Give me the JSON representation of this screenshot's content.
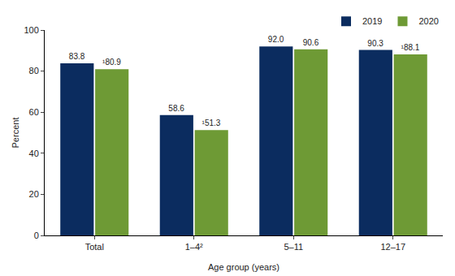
{
  "chart_data": {
    "type": "bar",
    "x_label": "Age group (years)",
    "y_label": "Percent",
    "categories": [
      "Total",
      "1–4²",
      "5–11",
      "12–17"
    ],
    "series": [
      {
        "name": "2019",
        "color": "#0b2c5f",
        "values": [
          83.8,
          58.6,
          92.0,
          90.3
        ],
        "value_labels": [
          "83.8",
          "58.6",
          "92.0",
          "90.3"
        ]
      },
      {
        "name": "2020",
        "color": "#6e9a35",
        "values": [
          80.9,
          51.3,
          90.6,
          88.1
        ],
        "value_labels": [
          "¹80.9",
          "¹51.3",
          "90.6",
          "¹88.1"
        ]
      }
    ],
    "ylim": [
      0,
      100
    ],
    "yticks": [
      0,
      20,
      40,
      60,
      80,
      100
    ],
    "grid": false,
    "legend": "top right",
    "data_labels": true
  }
}
